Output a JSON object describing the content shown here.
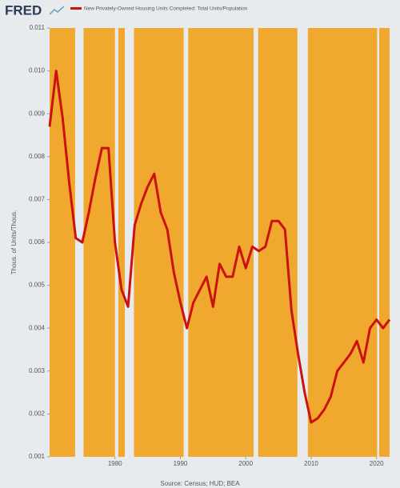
{
  "chart_data": {
    "type": "line",
    "logo": "FRED",
    "y_axis_label": "Thous. of Units/Thous.",
    "source": "Source: Census; HUD; BEA",
    "x": [
      1970,
      1971,
      1972,
      1973,
      1974,
      1975,
      1976,
      1977,
      1978,
      1979,
      1980,
      1981,
      1982,
      1983,
      1984,
      1985,
      1986,
      1987,
      1988,
      1989,
      1990,
      1991,
      1992,
      1993,
      1994,
      1995,
      1996,
      1997,
      1998,
      1999,
      2000,
      2001,
      2002,
      2003,
      2004,
      2005,
      2006,
      2007,
      2008,
      2009,
      2010,
      2011,
      2012,
      2013,
      2014,
      2015,
      2016,
      2017,
      2018,
      2019,
      2020,
      2021,
      2022
    ],
    "series": [
      {
        "name": "New Privately-Owned Housing Units Completed: Total Units/Population",
        "color": "#cc1111",
        "values": [
          0.0087,
          0.01,
          0.0089,
          0.0074,
          0.0061,
          0.006,
          0.0067,
          0.0075,
          0.0082,
          0.0082,
          0.006,
          0.0049,
          0.0045,
          0.0064,
          0.0069,
          0.0073,
          0.0076,
          0.0067,
          0.0063,
          0.0053,
          0.0046,
          0.004,
          0.0046,
          0.0049,
          0.0052,
          0.0045,
          0.0055,
          0.0052,
          0.0052,
          0.0059,
          0.0054,
          0.0059,
          0.0058,
          0.0059,
          0.0065,
          0.0065,
          0.0063,
          0.0044,
          0.0034,
          0.0025,
          0.0018,
          0.0019,
          0.0021,
          0.0024,
          0.003,
          0.0032,
          0.0034,
          0.0037,
          0.0032,
          0.004,
          0.0042,
          0.004,
          0.0042
        ]
      }
    ],
    "recessions": [
      [
        1973.9,
        1975.2
      ],
      [
        1980.0,
        1980.5
      ],
      [
        1981.5,
        1982.9
      ],
      [
        1990.5,
        1991.2
      ],
      [
        2001.2,
        2001.9
      ],
      [
        2007.9,
        2009.5
      ],
      [
        2020.1,
        2020.4
      ]
    ],
    "plot_color": "#f0a82e",
    "recession_color": "#e8ebee",
    "xlim": [
      1970,
      2022
    ],
    "xticks": [
      1980,
      1990,
      2000,
      2010,
      2020
    ],
    "ylim": [
      0.001,
      0.011
    ],
    "yticks": [
      {
        "value": 0.001,
        "label": "0.001"
      },
      {
        "value": 0.002,
        "label": "0.002"
      },
      {
        "value": 0.003,
        "label": "0.003"
      },
      {
        "value": 0.004,
        "label": "0.004"
      },
      {
        "value": 0.005,
        "label": "0.005"
      },
      {
        "value": 0.006,
        "label": "0.006"
      },
      {
        "value": 0.007,
        "label": "0.007"
      },
      {
        "value": 0.008,
        "label": "0.008"
      },
      {
        "value": 0.009,
        "label": "0.009"
      },
      {
        "value": 0.01,
        "label": "0.010"
      },
      {
        "value": 0.011,
        "label": "0.011"
      }
    ]
  }
}
